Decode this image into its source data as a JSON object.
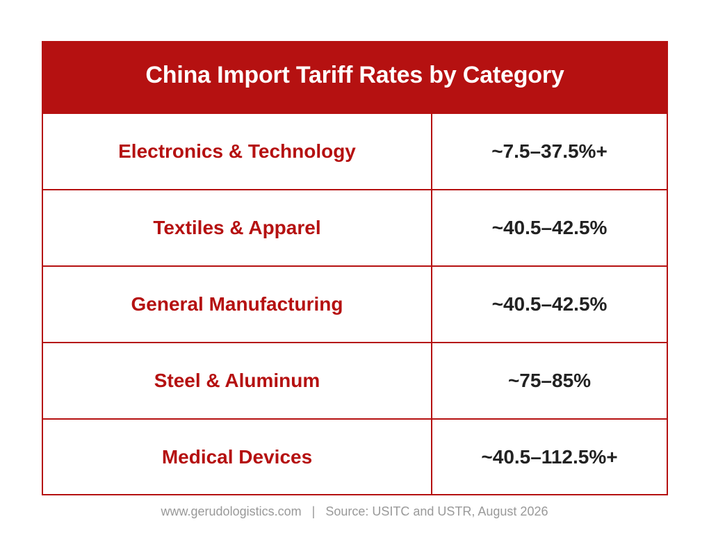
{
  "table": {
    "title": "China Import Tariff Rates by Category",
    "rows": [
      {
        "category": "Electronics & Technology",
        "rate": "~7.5–37.5%+"
      },
      {
        "category": "Textiles & Apparel",
        "rate": "~40.5–42.5%"
      },
      {
        "category": "General Manufacturing",
        "rate": "~40.5–42.5%"
      },
      {
        "category": "Steel & Aluminum",
        "rate": "~75–85%"
      },
      {
        "category": "Medical Devices",
        "rate": "~40.5–112.5%+"
      }
    ]
  },
  "footer": {
    "website": "www.gerudologistics.com",
    "separator": "|",
    "source": "Source: USITC and USTR, August 2026"
  },
  "colors": {
    "accent": "#b51111",
    "rate_text": "#222222",
    "footer_text": "#999999"
  }
}
